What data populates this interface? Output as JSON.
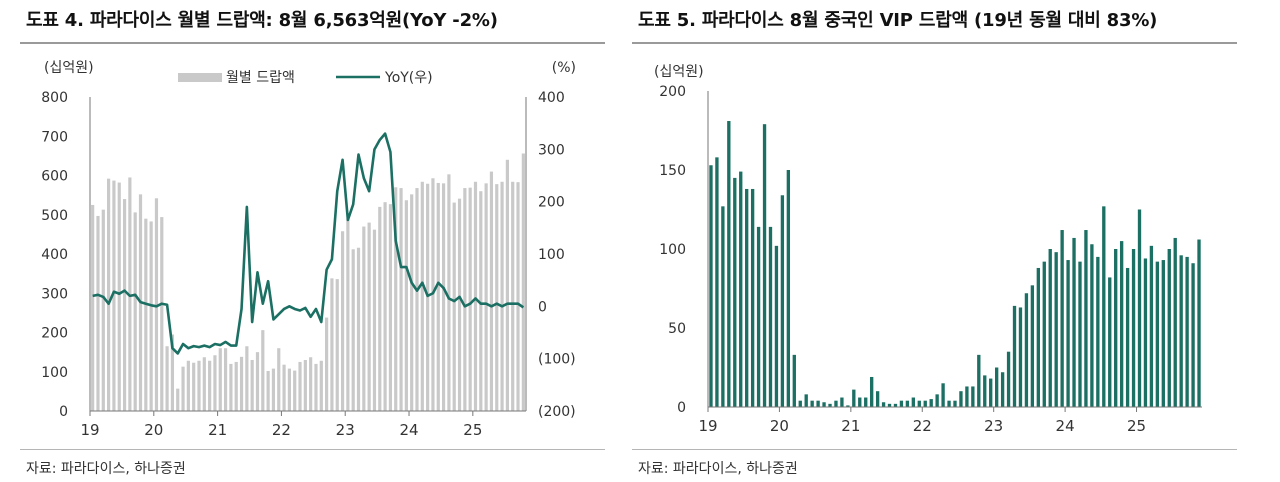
{
  "charts": [
    {
      "title": "도표 4. 파라다이스 월별 드랍액: 8월 6,563억원(YoY -2%)",
      "source": "자료: 파라다이스, 하나증권"
    },
    {
      "title": "도표 5. 파라다이스 8월 중국인 VIP 드랍액 (19년 동월 대비 83%)",
      "source": "자료: 파라다이스, 하나증권"
    }
  ],
  "chart_data": [
    {
      "type": "bar",
      "title": "도표 4. 파라다이스 월별 드랍액: 8월 6,563억원(YoY -2%)",
      "y_unit_left": "(십억원)",
      "y_unit_right": "(%)",
      "ylim": [
        0,
        800
      ],
      "y2lim": [
        -200,
        400
      ],
      "yticks": [
        0,
        100,
        200,
        300,
        400,
        500,
        600,
        700,
        800
      ],
      "y2ticks": [
        "(200)",
        "(100)",
        "0",
        "100",
        "200",
        "300",
        "400"
      ],
      "y2tick_values": [
        -200,
        -100,
        0,
        100,
        200,
        300,
        400
      ],
      "xticks": [
        "19",
        "20",
        "21",
        "22",
        "23",
        "24",
        "25"
      ],
      "legend": {
        "bar": "월별 드랍액",
        "line": "YoY(우)",
        "placement": "top"
      },
      "colors": {
        "bar": "#c9c9c9",
        "line": "#1b6f63"
      },
      "series": [
        {
          "name": "월별 드랍액",
          "kind": "bar",
          "values": [
            525,
            497,
            513,
            592,
            587,
            582,
            540,
            595,
            506,
            552,
            490,
            483,
            542,
            494,
            165,
            195,
            57,
            113,
            128,
            123,
            128,
            137,
            128,
            142,
            160,
            160,
            120,
            125,
            138,
            165,
            130,
            150,
            206,
            102,
            108,
            160,
            118,
            108,
            103,
            125,
            130,
            137,
            120,
            128,
            238,
            338,
            336,
            458,
            490,
            412,
            416,
            470,
            480,
            462,
            520,
            532,
            527,
            570,
            568,
            537,
            552,
            568,
            584,
            579,
            593,
            581,
            580,
            603,
            531,
            541,
            568,
            569,
            584,
            560,
            580,
            610,
            578,
            584,
            640,
            584,
            583,
            656
          ]
        },
        {
          "name": "YoY(우)",
          "kind": "line",
          "axis": "right",
          "values": [
            20,
            22,
            18,
            5,
            28,
            24,
            30,
            20,
            22,
            8,
            5,
            2,
            0,
            5,
            3,
            -80,
            -90,
            -72,
            -80,
            -76,
            -78,
            -75,
            -78,
            -72,
            -74,
            -68,
            -75,
            -75,
            -5,
            190,
            -30,
            65,
            5,
            48,
            -25,
            -15,
            -5,
            0,
            -5,
            -8,
            -3,
            -20,
            -5,
            -30,
            70,
            90,
            220,
            280,
            165,
            195,
            290,
            245,
            220,
            300,
            318,
            330,
            295,
            125,
            75,
            75,
            45,
            30,
            45,
            20,
            25,
            45,
            35,
            15,
            10,
            18,
            0,
            5,
            15,
            5,
            5,
            0,
            5,
            0,
            5,
            5,
            5,
            -2
          ]
        }
      ]
    },
    {
      "type": "bar",
      "title": "도표 5. 파라다이스 8월 중국인 VIP 드랍액 (19년 동월 대비 83%)",
      "y_unit_left": "(십억원)",
      "ylim": [
        0,
        200
      ],
      "yticks": [
        0,
        50,
        100,
        150,
        200
      ],
      "xticks": [
        "19",
        "20",
        "21",
        "22",
        "23",
        "24",
        "25"
      ],
      "colors": {
        "bar": "#1b6f63"
      },
      "series": [
        {
          "name": "중국인 VIP 드랍액",
          "kind": "bar",
          "values": [
            153,
            158,
            127,
            181,
            145,
            149,
            138,
            138,
            114,
            179,
            114,
            102,
            134,
            150,
            33,
            4,
            8,
            4,
            4,
            3,
            2,
            4,
            6,
            1,
            11,
            6,
            6,
            19,
            10,
            3,
            2,
            2,
            4,
            4,
            6,
            4,
            4,
            5,
            8,
            15,
            4,
            4,
            10,
            13,
            13,
            33,
            20,
            18,
            25,
            22,
            35,
            64,
            63,
            72,
            77,
            88,
            92,
            100,
            98,
            112,
            93,
            107,
            92,
            112,
            103,
            95,
            127,
            82,
            100,
            105,
            88,
            100,
            125,
            94,
            102,
            92,
            93,
            100,
            107,
            96,
            95,
            91,
            106
          ]
        }
      ]
    }
  ]
}
